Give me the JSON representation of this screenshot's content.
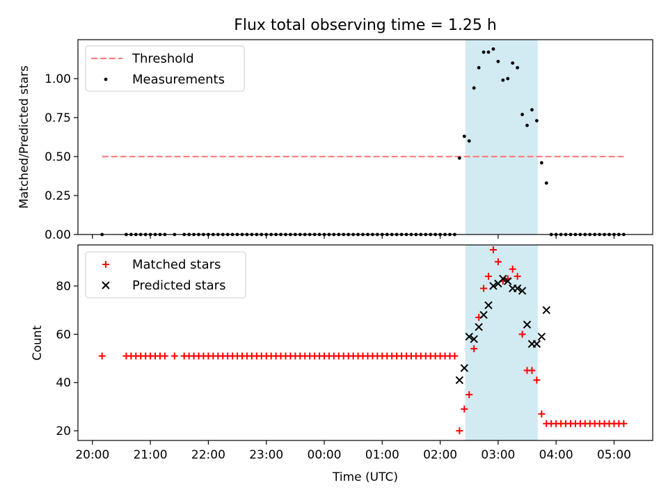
{
  "title": "Flux total observing time = 1.25 h",
  "xlabel": "Time (UTC)",
  "x_ticks": [
    "20:00",
    "21:00",
    "22:00",
    "23:00",
    "00:00",
    "01:00",
    "02:00",
    "03:00",
    "04:00",
    "05:00"
  ],
  "shaded_interval": [
    "02:26",
    "03:41"
  ],
  "colors": {
    "threshold": "#ff7f7f",
    "measurements": "#000000",
    "matched": "#ff0000",
    "predicted": "#000000",
    "shade": "#add8e6"
  },
  "chart_data": [
    {
      "type": "scatter",
      "ylabel": "Matched/Predicted stars",
      "xlim": [
        "19:45",
        "05:40"
      ],
      "ylim": [
        0,
        1.25
      ],
      "y_ticks": [
        "0.00",
        "0.25",
        "0.50",
        "0.75",
        "1.00"
      ],
      "legend_position": "upper-left",
      "threshold": {
        "name": "Threshold",
        "value": 0.5,
        "x_start": "20:10",
        "x_end": "05:10"
      },
      "series": [
        {
          "name": "Measurements",
          "points": [
            [
              "20:10",
              0.0
            ],
            [
              "20:35",
              0.0
            ],
            [
              "20:40",
              0.0
            ],
            [
              "20:45",
              0.0
            ],
            [
              "20:50",
              0.0
            ],
            [
              "20:55",
              0.0
            ],
            [
              "21:00",
              0.0
            ],
            [
              "21:05",
              0.0
            ],
            [
              "21:10",
              0.0
            ],
            [
              "21:15",
              0.0
            ],
            [
              "21:25",
              0.0
            ],
            [
              "21:35",
              0.0
            ],
            [
              "21:40",
              0.0
            ],
            [
              "21:45",
              0.0
            ],
            [
              "21:50",
              0.0
            ],
            [
              "21:55",
              0.0
            ],
            [
              "22:00",
              0.0
            ],
            [
              "22:05",
              0.0
            ],
            [
              "22:10",
              0.0
            ],
            [
              "22:15",
              0.0
            ],
            [
              "22:20",
              0.0
            ],
            [
              "22:25",
              0.0
            ],
            [
              "22:30",
              0.0
            ],
            [
              "22:35",
              0.0
            ],
            [
              "22:40",
              0.0
            ],
            [
              "22:45",
              0.0
            ],
            [
              "22:50",
              0.0
            ],
            [
              "22:55",
              0.0
            ],
            [
              "23:00",
              0.0
            ],
            [
              "23:05",
              0.0
            ],
            [
              "23:10",
              0.0
            ],
            [
              "23:15",
              0.0
            ],
            [
              "23:20",
              0.0
            ],
            [
              "23:25",
              0.0
            ],
            [
              "23:30",
              0.0
            ],
            [
              "23:35",
              0.0
            ],
            [
              "23:40",
              0.0
            ],
            [
              "23:45",
              0.0
            ],
            [
              "23:50",
              0.0
            ],
            [
              "23:55",
              0.0
            ],
            [
              "00:00",
              0.0
            ],
            [
              "00:05",
              0.0
            ],
            [
              "00:10",
              0.0
            ],
            [
              "00:15",
              0.0
            ],
            [
              "00:20",
              0.0
            ],
            [
              "00:25",
              0.0
            ],
            [
              "00:30",
              0.0
            ],
            [
              "00:35",
              0.0
            ],
            [
              "00:40",
              0.0
            ],
            [
              "00:45",
              0.0
            ],
            [
              "00:50",
              0.0
            ],
            [
              "00:55",
              0.0
            ],
            [
              "01:00",
              0.0
            ],
            [
              "01:05",
              0.0
            ],
            [
              "01:10",
              0.0
            ],
            [
              "01:15",
              0.0
            ],
            [
              "01:20",
              0.0
            ],
            [
              "01:25",
              0.0
            ],
            [
              "01:30",
              0.0
            ],
            [
              "01:35",
              0.0
            ],
            [
              "01:40",
              0.0
            ],
            [
              "01:45",
              0.0
            ],
            [
              "01:50",
              0.0
            ],
            [
              "01:55",
              0.0
            ],
            [
              "02:00",
              0.0
            ],
            [
              "02:05",
              0.0
            ],
            [
              "02:10",
              0.0
            ],
            [
              "02:15",
              0.0
            ],
            [
              "02:20",
              0.49
            ],
            [
              "02:25",
              0.63
            ],
            [
              "02:30",
              0.6
            ],
            [
              "02:35",
              0.94
            ],
            [
              "02:40",
              1.07
            ],
            [
              "02:45",
              1.17
            ],
            [
              "02:50",
              1.17
            ],
            [
              "02:55",
              1.19
            ],
            [
              "03:00",
              1.11
            ],
            [
              "03:05",
              0.99
            ],
            [
              "03:10",
              1.0
            ],
            [
              "03:15",
              1.1
            ],
            [
              "03:20",
              1.07
            ],
            [
              "03:25",
              0.77
            ],
            [
              "03:30",
              0.7
            ],
            [
              "03:35",
              0.8
            ],
            [
              "03:40",
              0.73
            ],
            [
              "03:45",
              0.46
            ],
            [
              "03:50",
              0.33
            ],
            [
              "03:55",
              0.0
            ],
            [
              "04:00",
              0.0
            ],
            [
              "04:05",
              0.0
            ],
            [
              "04:10",
              0.0
            ],
            [
              "04:15",
              0.0
            ],
            [
              "04:20",
              0.0
            ],
            [
              "04:25",
              0.0
            ],
            [
              "04:30",
              0.0
            ],
            [
              "04:35",
              0.0
            ],
            [
              "04:40",
              0.0
            ],
            [
              "04:45",
              0.0
            ],
            [
              "04:50",
              0.0
            ],
            [
              "04:55",
              0.0
            ],
            [
              "05:00",
              0.0
            ],
            [
              "05:05",
              0.0
            ],
            [
              "05:10",
              0.0
            ]
          ]
        }
      ]
    },
    {
      "type": "scatter",
      "ylabel": "Count",
      "xlim": [
        "19:45",
        "05:40"
      ],
      "ylim": [
        16,
        97
      ],
      "y_ticks": [
        "20",
        "40",
        "60",
        "80"
      ],
      "legend_position": "upper-left",
      "series": [
        {
          "name": "Matched stars",
          "points": [
            [
              "20:10",
              51
            ],
            [
              "20:35",
              51
            ],
            [
              "20:40",
              51
            ],
            [
              "20:45",
              51
            ],
            [
              "20:50",
              51
            ],
            [
              "20:55",
              51
            ],
            [
              "21:00",
              51
            ],
            [
              "21:05",
              51
            ],
            [
              "21:10",
              51
            ],
            [
              "21:15",
              51
            ],
            [
              "21:25",
              51
            ],
            [
              "21:35",
              51
            ],
            [
              "21:40",
              51
            ],
            [
              "21:45",
              51
            ],
            [
              "21:50",
              51
            ],
            [
              "21:55",
              51
            ],
            [
              "22:00",
              51
            ],
            [
              "22:05",
              51
            ],
            [
              "22:10",
              51
            ],
            [
              "22:15",
              51
            ],
            [
              "22:20",
              51
            ],
            [
              "22:25",
              51
            ],
            [
              "22:30",
              51
            ],
            [
              "22:35",
              51
            ],
            [
              "22:40",
              51
            ],
            [
              "22:45",
              51
            ],
            [
              "22:50",
              51
            ],
            [
              "22:55",
              51
            ],
            [
              "23:00",
              51
            ],
            [
              "23:05",
              51
            ],
            [
              "23:10",
              51
            ],
            [
              "23:15",
              51
            ],
            [
              "23:20",
              51
            ],
            [
              "23:25",
              51
            ],
            [
              "23:30",
              51
            ],
            [
              "23:35",
              51
            ],
            [
              "23:40",
              51
            ],
            [
              "23:45",
              51
            ],
            [
              "23:50",
              51
            ],
            [
              "23:55",
              51
            ],
            [
              "00:00",
              51
            ],
            [
              "00:05",
              51
            ],
            [
              "00:10",
              51
            ],
            [
              "00:15",
              51
            ],
            [
              "00:20",
              51
            ],
            [
              "00:25",
              51
            ],
            [
              "00:30",
              51
            ],
            [
              "00:35",
              51
            ],
            [
              "00:40",
              51
            ],
            [
              "00:45",
              51
            ],
            [
              "00:50",
              51
            ],
            [
              "00:55",
              51
            ],
            [
              "01:00",
              51
            ],
            [
              "01:05",
              51
            ],
            [
              "01:10",
              51
            ],
            [
              "01:15",
              51
            ],
            [
              "01:20",
              51
            ],
            [
              "01:25",
              51
            ],
            [
              "01:30",
              51
            ],
            [
              "01:35",
              51
            ],
            [
              "01:40",
              51
            ],
            [
              "01:45",
              51
            ],
            [
              "01:50",
              51
            ],
            [
              "01:55",
              51
            ],
            [
              "02:00",
              51
            ],
            [
              "02:05",
              51
            ],
            [
              "02:10",
              51
            ],
            [
              "02:15",
              51
            ],
            [
              "02:20",
              20
            ],
            [
              "02:25",
              29
            ],
            [
              "02:30",
              35
            ],
            [
              "02:35",
              54
            ],
            [
              "02:40",
              67
            ],
            [
              "02:45",
              79
            ],
            [
              "02:50",
              84
            ],
            [
              "02:55",
              95
            ],
            [
              "03:00",
              90
            ],
            [
              "03:05",
              82
            ],
            [
              "03:10",
              83
            ],
            [
              "03:15",
              87
            ],
            [
              "03:20",
              84
            ],
            [
              "03:25",
              60
            ],
            [
              "03:30",
              45
            ],
            [
              "03:35",
              45
            ],
            [
              "03:40",
              41
            ],
            [
              "03:45",
              27
            ],
            [
              "03:50",
              23
            ],
            [
              "03:55",
              23
            ],
            [
              "04:00",
              23
            ],
            [
              "04:05",
              23
            ],
            [
              "04:10",
              23
            ],
            [
              "04:15",
              23
            ],
            [
              "04:20",
              23
            ],
            [
              "04:25",
              23
            ],
            [
              "04:30",
              23
            ],
            [
              "04:35",
              23
            ],
            [
              "04:40",
              23
            ],
            [
              "04:45",
              23
            ],
            [
              "04:50",
              23
            ],
            [
              "04:55",
              23
            ],
            [
              "05:00",
              23
            ],
            [
              "05:05",
              23
            ],
            [
              "05:10",
              23
            ]
          ]
        },
        {
          "name": "Predicted stars",
          "points": [
            [
              "02:20",
              41
            ],
            [
              "02:25",
              46
            ],
            [
              "02:30",
              59
            ],
            [
              "02:35",
              58
            ],
            [
              "02:40",
              63
            ],
            [
              "02:45",
              68
            ],
            [
              "02:50",
              72
            ],
            [
              "02:55",
              80
            ],
            [
              "03:00",
              81
            ],
            [
              "03:05",
              83
            ],
            [
              "03:10",
              82
            ],
            [
              "03:15",
              79
            ],
            [
              "03:20",
              79
            ],
            [
              "03:25",
              78
            ],
            [
              "03:30",
              64
            ],
            [
              "03:35",
              56
            ],
            [
              "03:40",
              56
            ],
            [
              "03:45",
              59
            ],
            [
              "03:50",
              70
            ]
          ]
        }
      ]
    }
  ]
}
